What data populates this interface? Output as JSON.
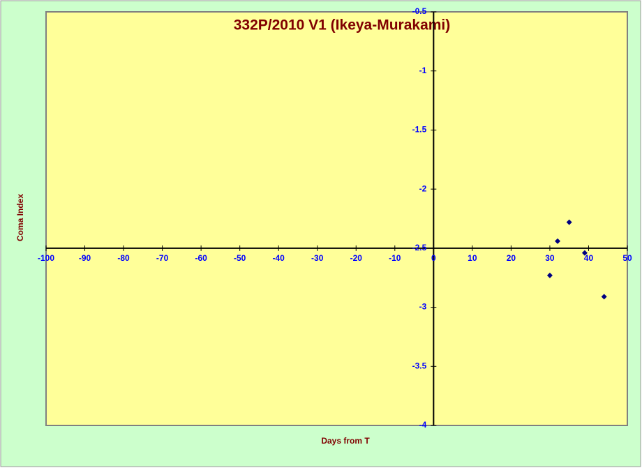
{
  "chart_data": {
    "type": "scatter",
    "title": "332P/2010 V1 (Ikeya-Murakami)",
    "x_label": "Days from T",
    "y_label": "Coma Index",
    "series": [
      {
        "color": "#000080",
        "x": [
          30,
          32,
          35,
          39,
          44
        ],
        "values": [
          -2.73,
          -2.44,
          -2.28,
          -2.54,
          -2.91
        ]
      }
    ],
    "xlim": [
      -100,
      50
    ],
    "xticks": [
      -100,
      -90,
      -80,
      -70,
      -60,
      -50,
      -40,
      -30,
      -20,
      -10,
      0,
      10,
      20,
      30,
      40,
      50
    ],
    "ylim": [
      -4,
      -0.5
    ],
    "yticks": [
      -0.5,
      -1,
      -1.5,
      -2,
      -2.5,
      -3,
      -3.5,
      -4
    ],
    "axis_cross": {
      "x": 0,
      "y": -2.5
    }
  }
}
